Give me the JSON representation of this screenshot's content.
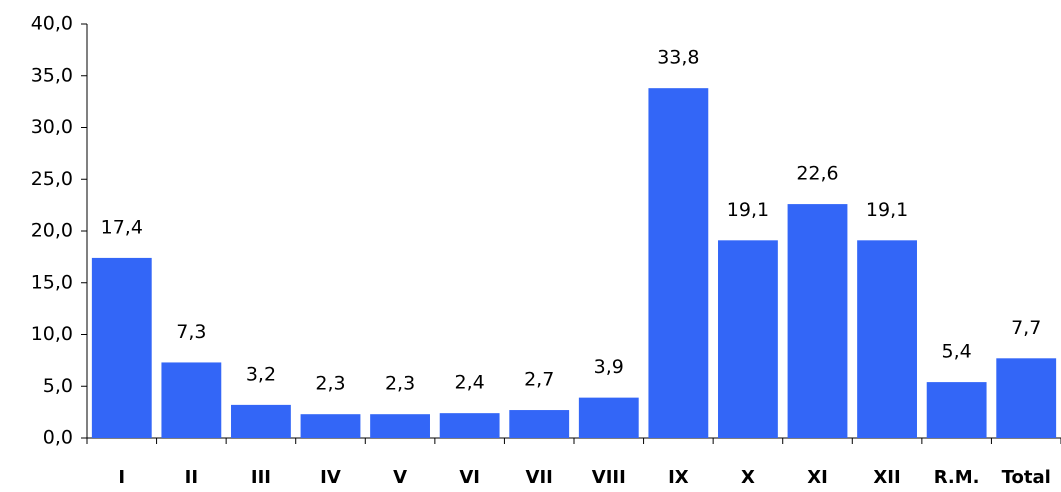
{
  "chart_data": {
    "type": "bar",
    "categories": [
      "I",
      "II",
      "III",
      "IV",
      "V",
      "VI",
      "VII",
      "VIII",
      "IX",
      "X",
      "XI",
      "XII",
      "R.M.",
      "Total"
    ],
    "values": [
      17.4,
      7.3,
      3.2,
      2.3,
      2.3,
      2.4,
      2.7,
      3.9,
      33.8,
      19.1,
      22.6,
      19.1,
      5.4,
      7.7
    ],
    "value_labels": [
      "17,4",
      "7,3",
      "3,2",
      "2,3",
      "2,3",
      "2,4",
      "2,7",
      "3,9",
      "33,8",
      "19,1",
      "22,6",
      "19,1",
      "5,4",
      "7,7"
    ],
    "color": "#3366f7",
    "ylim": [
      0,
      40
    ],
    "yticks": [
      {
        "value": 0,
        "label": "0,0"
      },
      {
        "value": 5,
        "label": "5,0"
      },
      {
        "value": 10,
        "label": "10,0"
      },
      {
        "value": 15,
        "label": "15,0"
      },
      {
        "value": 20,
        "label": "20,0"
      },
      {
        "value": 25,
        "label": "25,0"
      },
      {
        "value": 30,
        "label": "30,0"
      },
      {
        "value": 35,
        "label": "35,0"
      },
      {
        "value": 40,
        "label": "40,0"
      }
    ],
    "grid": false
  }
}
